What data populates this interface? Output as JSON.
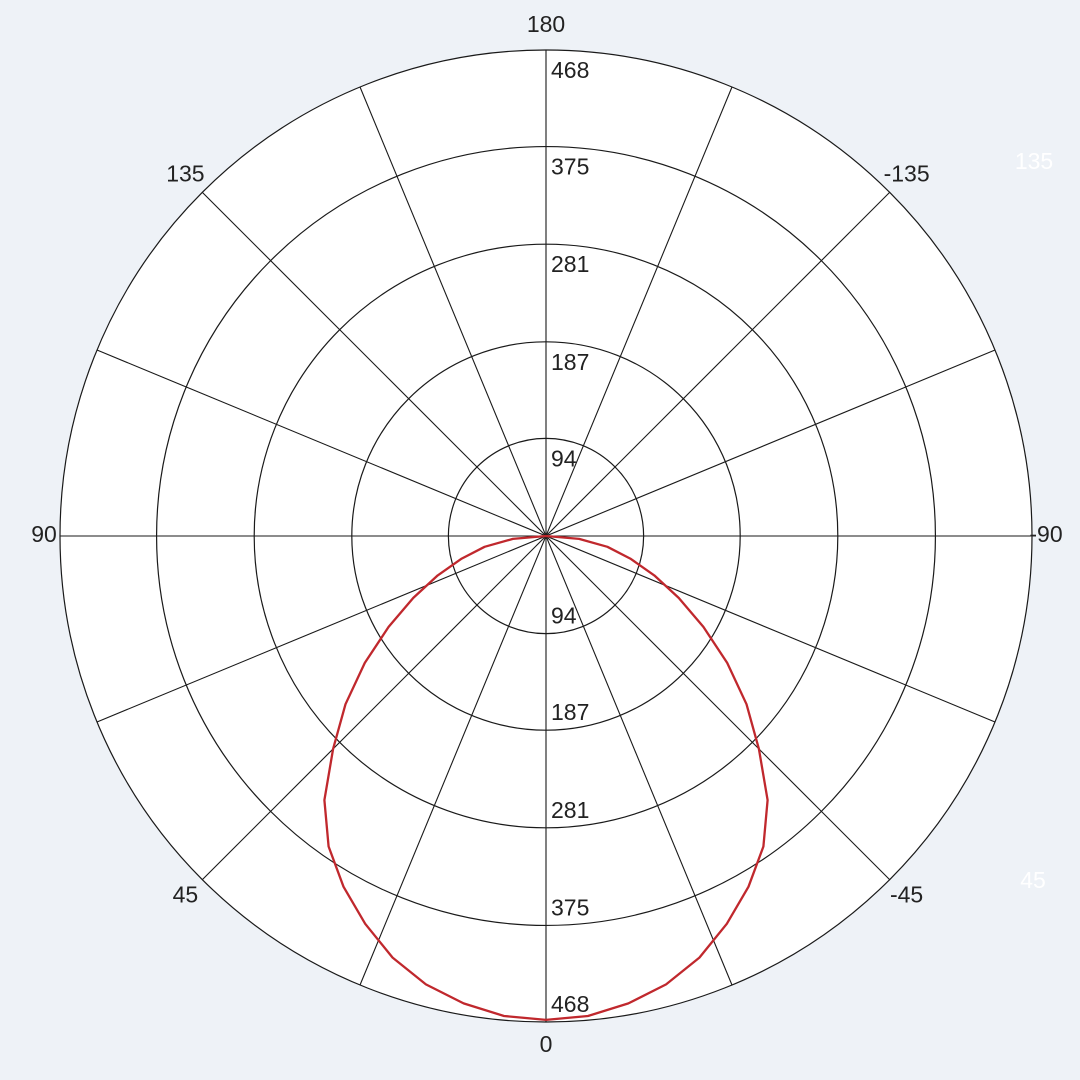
{
  "chart_data": {
    "type": "polar-line",
    "title": "",
    "angle_zero": "bottom",
    "angle_direction": "positive to the left (clockwise from bottom)",
    "angle_ticks": [
      0,
      45,
      90,
      135,
      180,
      -135,
      -90,
      -45
    ],
    "angle_tick_labels": [
      "0",
      "45",
      "90",
      "135",
      "180",
      "-135",
      "-90",
      "-45"
    ],
    "spoke_step_deg": 22.5,
    "radial_range": [
      0,
      468
    ],
    "radial_ticks": [
      94,
      187,
      281,
      375,
      468
    ],
    "radial_tick_labels": [
      "94",
      "187",
      "281",
      "375",
      "468"
    ],
    "ghost_labels": [
      "135",
      "45"
    ],
    "grid": true,
    "colors": {
      "background": "#eef2f7",
      "plot": "#ffffff",
      "grid": "#1a1a1a",
      "series": "#c0282d",
      "ghost": "#ffffff"
    },
    "series": [
      {
        "angles": [
          -90,
          -85,
          -80,
          -75,
          -70,
          -65,
          -60,
          -55,
          -50,
          -45,
          -40,
          -35,
          -30,
          -25,
          -20,
          -15,
          -10,
          -5,
          0,
          5,
          10,
          15,
          20,
          25,
          30,
          35,
          40,
          45,
          50,
          55,
          60,
          65,
          70,
          75,
          80,
          85,
          90
        ],
        "values": [
          0,
          32,
          60,
          84,
          111,
          141,
          175,
          213,
          252,
          290,
          332,
          365,
          390,
          412,
          432,
          447,
          457,
          464,
          466,
          464,
          457,
          447,
          432,
          412,
          390,
          365,
          332,
          290,
          252,
          213,
          175,
          141,
          111,
          84,
          60,
          32,
          0
        ]
      }
    ]
  }
}
